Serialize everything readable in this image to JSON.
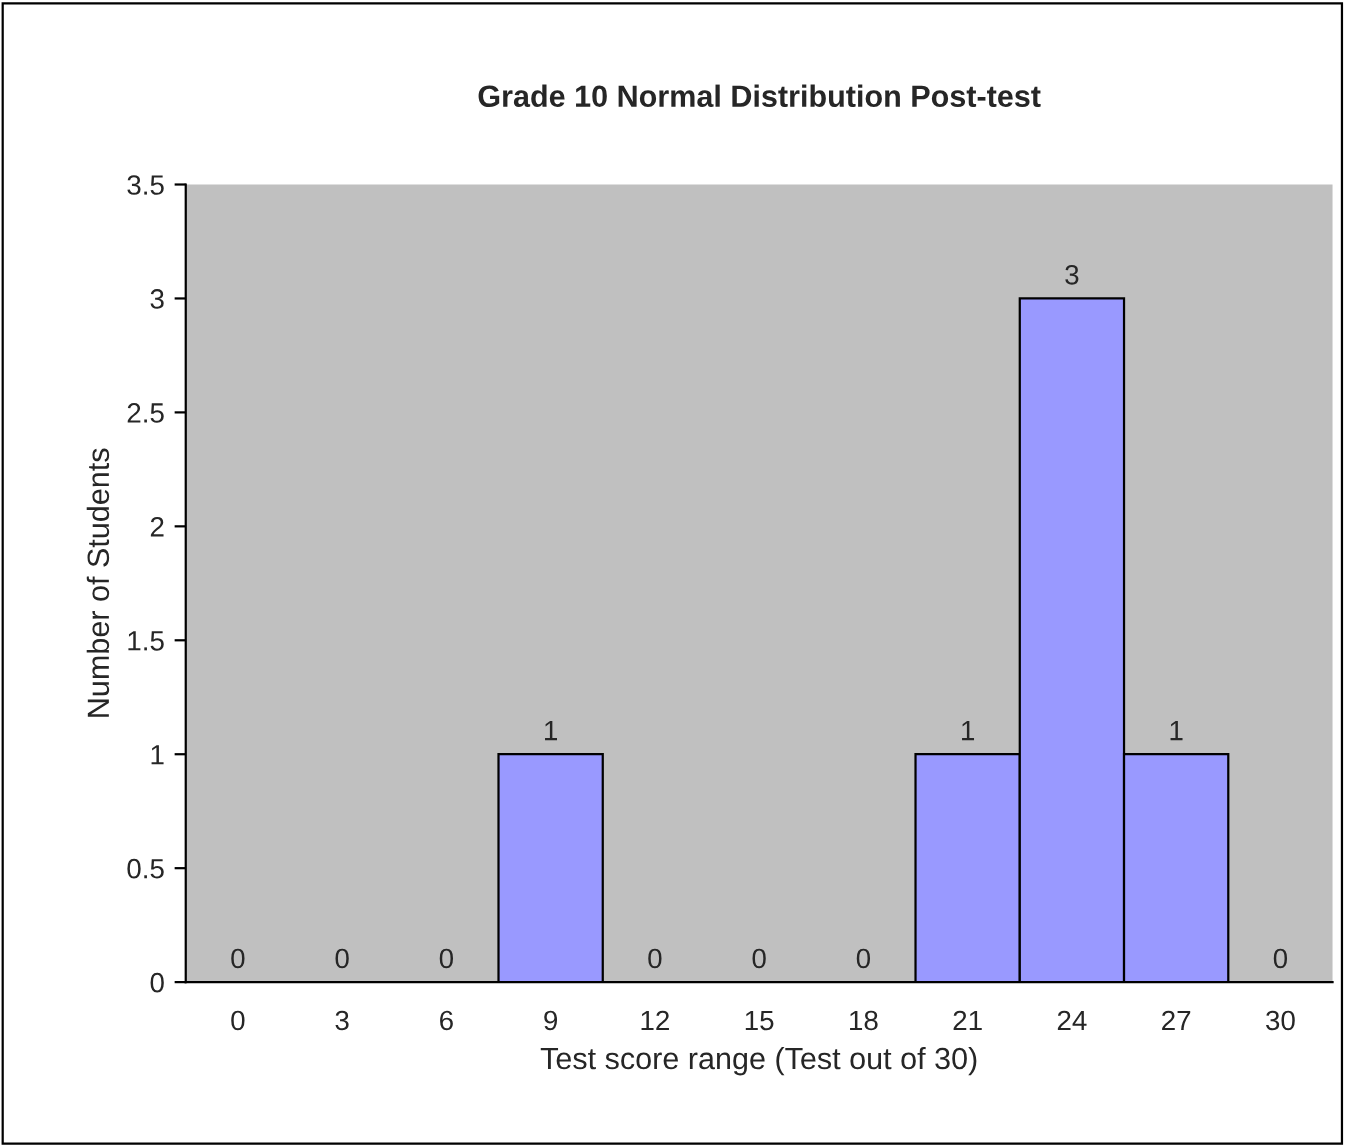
{
  "chart_data": {
    "type": "bar",
    "title": "Grade 10 Normal Distribution Post-test",
    "xlabel": "Test score range (Test out of 30)",
    "ylabel": "Number of Students",
    "categories": [
      "0",
      "3",
      "6",
      "9",
      "12",
      "15",
      "18",
      "21",
      "24",
      "27",
      "30"
    ],
    "values": [
      0,
      0,
      0,
      1,
      0,
      0,
      0,
      1,
      3,
      1,
      0
    ],
    "color": "#9999ff",
    "ylim": [
      0,
      3.5
    ],
    "yticks": [
      0,
      0.5,
      1,
      1.5,
      2,
      2.5,
      3,
      3.5
    ],
    "grid": false,
    "data_labels": true
  }
}
